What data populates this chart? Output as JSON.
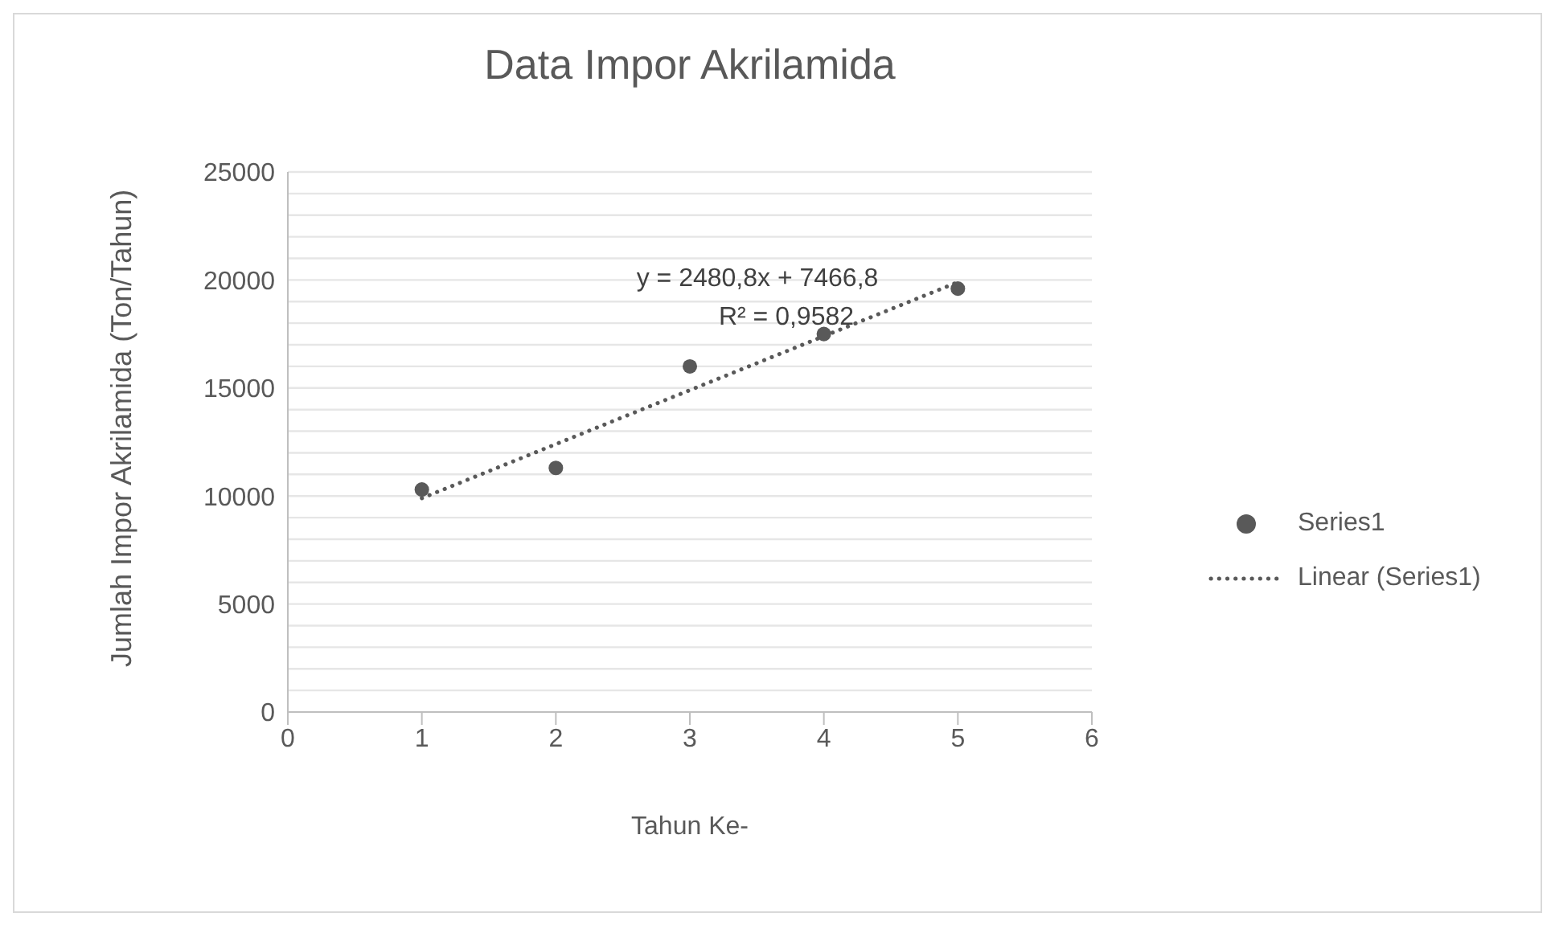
{
  "chart_data": {
    "type": "scatter",
    "title": "Data Impor Akrilamida",
    "xlabel": "Tahun Ke-",
    "ylabel": "Jumlah Impor Akrilamida (Ton/Tahun)",
    "x": [
      1,
      2,
      3,
      4,
      5
    ],
    "series": [
      {
        "name": "Series1",
        "color": "#595959",
        "marker": "circle",
        "values": [
          10300,
          11300,
          16000,
          17500,
          19600
        ]
      },
      {
        "name": "Linear (Series1)",
        "type": "line",
        "color": "#595959",
        "marker": "none",
        "line_style": "dotted",
        "x": [
          1,
          5
        ],
        "values": [
          9900,
          19900
        ]
      }
    ],
    "xlim": [
      0,
      6
    ],
    "xticks": [
      0,
      1,
      2,
      3,
      4,
      5,
      6
    ],
    "ylim": [
      0,
      25000
    ],
    "yticks": [
      0,
      {
        "value": 1000,
        "label": null
      },
      {
        "value": 2000,
        "label": null
      },
      {
        "value": 3000,
        "label": null
      },
      {
        "value": 4000,
        "label": null
      },
      5000,
      {
        "value": 6000,
        "label": null
      },
      {
        "value": 7000,
        "label": null
      },
      {
        "value": 8000,
        "label": null
      },
      {
        "value": 9000,
        "label": null
      },
      10000,
      {
        "value": 11000,
        "label": null
      },
      {
        "value": 12000,
        "label": null
      },
      {
        "value": 13000,
        "label": null
      },
      {
        "value": 14000,
        "label": null
      },
      15000,
      {
        "value": 16000,
        "label": null
      },
      {
        "value": 17000,
        "label": null
      },
      {
        "value": 18000,
        "label": null
      },
      {
        "value": 19000,
        "label": null
      },
      20000,
      {
        "value": 21000,
        "label": null
      },
      {
        "value": 22000,
        "label": null
      },
      {
        "value": 23000,
        "label": null
      },
      {
        "value": 24000,
        "label": null
      },
      25000
    ],
    "grid": "y",
    "legend": "right",
    "annotations": [
      "y = 2480,8x + 7466,8",
      "R² = 0,9582"
    ]
  }
}
